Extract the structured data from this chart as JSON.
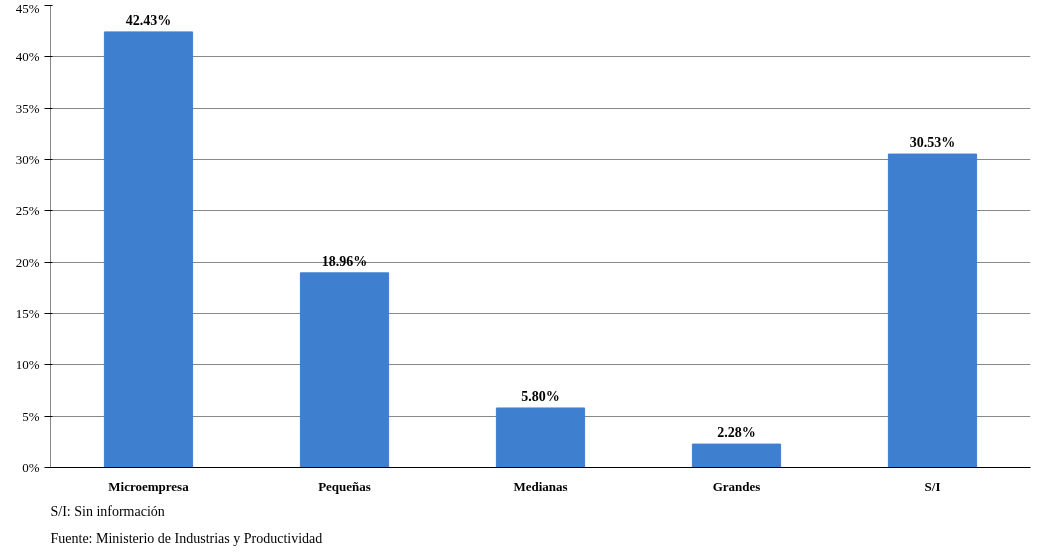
{
  "chart_data": {
    "type": "bar",
    "categories": [
      "Microempresa",
      "Pequeñas",
      "Medianas",
      "Grandes",
      "S/I"
    ],
    "values": [
      42.43,
      18.96,
      5.8,
      2.28,
      30.53
    ],
    "value_labels": [
      "42.43%",
      "18.96%",
      "5.80%",
      "2.28%",
      "30.53%"
    ],
    "color": "#3f7fd0",
    "ylim": [
      0,
      45
    ],
    "yticks": [
      {
        "value": 0,
        "label": "0%"
      },
      {
        "value": 5,
        "label": "5%"
      },
      {
        "value": 10,
        "label": "10%"
      },
      {
        "value": 15,
        "label": "15%"
      },
      {
        "value": 20,
        "label": "20%"
      },
      {
        "value": 25,
        "label": "25%"
      },
      {
        "value": 30,
        "label": "30%"
      },
      {
        "value": 35,
        "label": "35%"
      },
      {
        "value": 40,
        "label": "40%"
      },
      {
        "value": 45,
        "label": "45%"
      }
    ],
    "grid": "y",
    "annotations": [
      "S/I: Sin información",
      "Fuente: Ministerio de Industrias y Productividad"
    ]
  }
}
